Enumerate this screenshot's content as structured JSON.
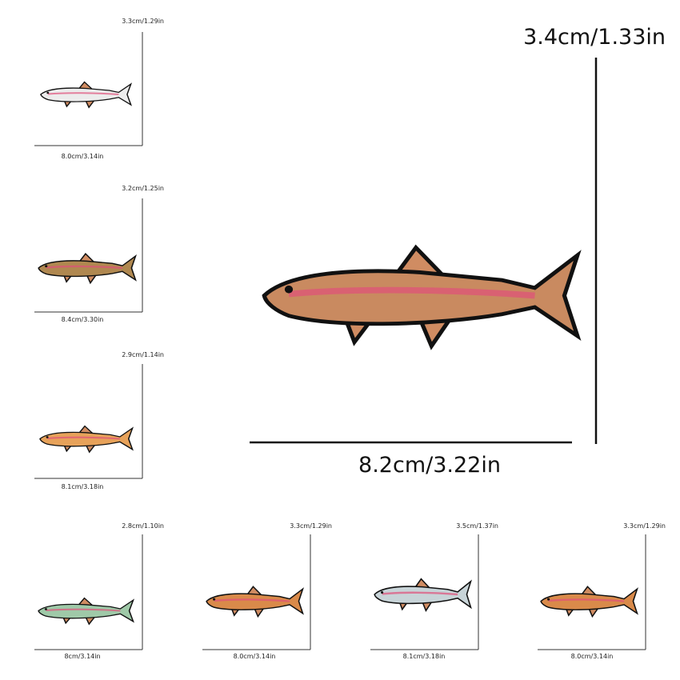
{
  "main": {
    "height": "3.4cm/1.33in",
    "width": "8.2cm/3.22in"
  },
  "items": [
    {
      "height": "3.3cm/1.29in",
      "width": "8.0cm/3.14in"
    },
    {
      "height": "3.2cm/1.25in",
      "width": "8.4cm/3.30in"
    },
    {
      "height": "2.9cm/1.14in",
      "width": "8.1cm/3.18in"
    },
    {
      "height": "2.8cm/1.10in",
      "width": "8cm/3.14in"
    },
    {
      "height": "3.3cm/1.29in",
      "width": "8.0cm/3.14in"
    },
    {
      "height": "3.5cm/1.37in",
      "width": "8.1cm/3.18in"
    },
    {
      "height": "3.3cm/1.29in",
      "width": "8.0cm/3.14in"
    }
  ]
}
